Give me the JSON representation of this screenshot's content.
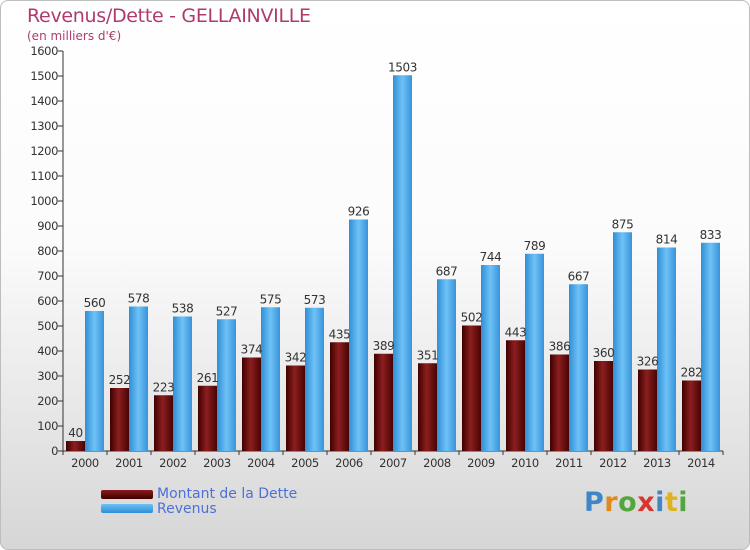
{
  "title": "Revenus/Dette - GELLAINVILLE",
  "subtitle": "(en milliers d'€)",
  "chart_data": {
    "type": "bar",
    "title": "Revenus/Dette - GELLAINVILLE",
    "subtitle": "(en milliers d'€)",
    "xlabel": "",
    "ylabel": "",
    "ylim": [
      0,
      1600
    ],
    "ytick_step": 100,
    "grid": false,
    "legend_position": "bottom-left",
    "categories": [
      "2000",
      "2001",
      "2002",
      "2003",
      "2004",
      "2005",
      "2006",
      "2007",
      "2008",
      "2009",
      "2010",
      "2011",
      "2012",
      "2013",
      "2014"
    ],
    "series": [
      {
        "name": "Montant de la Dette",
        "color": "#6b0f0f",
        "values": [
          40,
          252,
          223,
          261,
          374,
          342,
          435,
          389,
          351,
          502,
          443,
          386,
          360,
          326,
          282
        ]
      },
      {
        "name": "Revenus",
        "color": "#4aa6e8",
        "values": [
          560,
          578,
          538,
          527,
          575,
          573,
          926,
          1503,
          687,
          744,
          789,
          667,
          875,
          814,
          833
        ]
      }
    ]
  },
  "legend": {
    "dette_label": "Montant de la Dette",
    "revenus_label": "Revenus"
  },
  "logo": {
    "text": "Proxiti",
    "colors": [
      "#3f86c8",
      "#e08a1e",
      "#52a63c",
      "#d8352c",
      "#3f86c8",
      "#e0b21e",
      "#52a63c"
    ]
  }
}
